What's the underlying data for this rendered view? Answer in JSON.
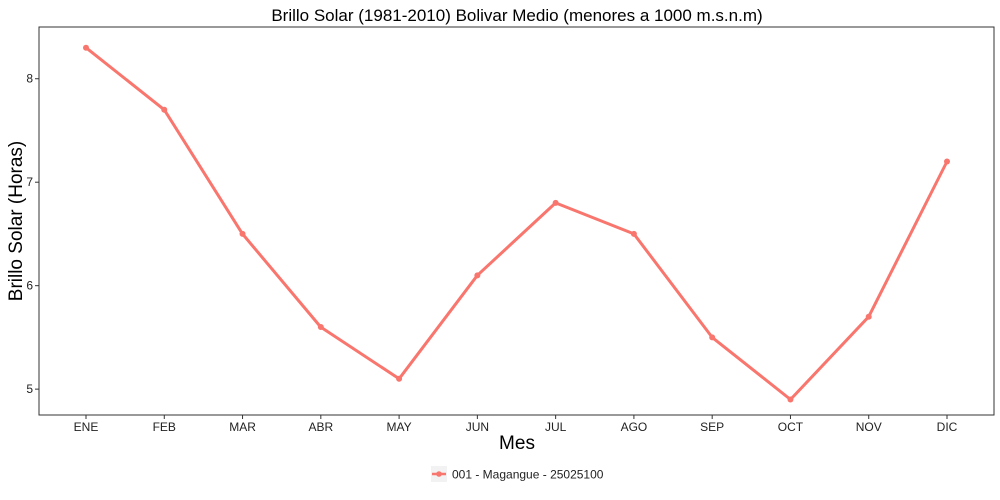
{
  "chart_data": {
    "type": "line",
    "title": "Brillo Solar (1981-2010) Bolivar Medio (menores a 1000 m.s.n.m)",
    "xlabel": "Mes",
    "ylabel": "Brillo Solar (Horas)",
    "categories": [
      "ENE",
      "FEB",
      "MAR",
      "ABR",
      "MAY",
      "JUN",
      "JUL",
      "AGO",
      "SEP",
      "OCT",
      "NOV",
      "DIC"
    ],
    "series": [
      {
        "name": "001 - Magangue - 25025100",
        "values": [
          8.3,
          7.7,
          6.5,
          5.6,
          5.1,
          6.1,
          6.8,
          6.5,
          5.5,
          4.9,
          5.7,
          7.2
        ],
        "color": "#F8766D"
      }
    ],
    "ylim": [
      4.75,
      8.5
    ],
    "yticks": [
      5,
      6,
      7,
      8
    ],
    "grid": false,
    "legend_position": "bottom"
  }
}
